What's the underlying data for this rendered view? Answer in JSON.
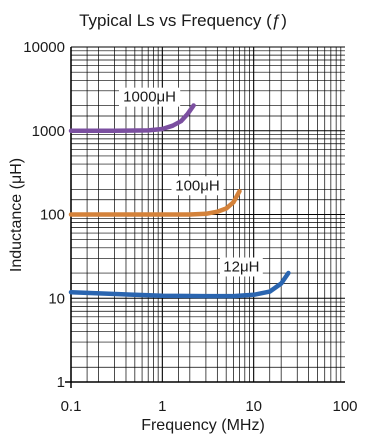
{
  "chart_data": {
    "type": "line",
    "title": "Typical Ls vs Frequency (ƒ)",
    "xlabel": "Frequency (MHz)",
    "ylabel": "Inductance (μH)",
    "x_scale": "log",
    "y_scale": "log",
    "xlim": [
      0.1,
      100
    ],
    "ylim": [
      1,
      10000
    ],
    "x_ticks": [
      "0.1",
      "1",
      "10",
      "100"
    ],
    "y_ticks": [
      "1",
      "10",
      "100",
      "1000",
      "10000"
    ],
    "grid": true,
    "series": [
      {
        "name": "1000μH",
        "color": "#7b4fa0",
        "x": [
          0.1,
          0.3,
          0.7,
          1.0,
          1.3,
          1.6,
          1.9,
          2.2
        ],
        "y": [
          1000,
          1000,
          1010,
          1050,
          1150,
          1300,
          1600,
          2000
        ]
      },
      {
        "name": "100μH",
        "color": "#d4823a",
        "x": [
          0.1,
          0.5,
          1.0,
          2.0,
          3.0,
          4.0,
          5.0,
          6.0,
          7.0
        ],
        "y": [
          100,
          100,
          100,
          100,
          102,
          108,
          118,
          140,
          190
        ]
      },
      {
        "name": "12μH",
        "color": "#2a65b0",
        "x": [
          0.1,
          0.5,
          1.0,
          3.0,
          6.0,
          10,
          15,
          20,
          24
        ],
        "y": [
          11.8,
          11.0,
          10.7,
          10.6,
          10.6,
          11.0,
          12.0,
          15.0,
          20.0
        ]
      }
    ]
  }
}
